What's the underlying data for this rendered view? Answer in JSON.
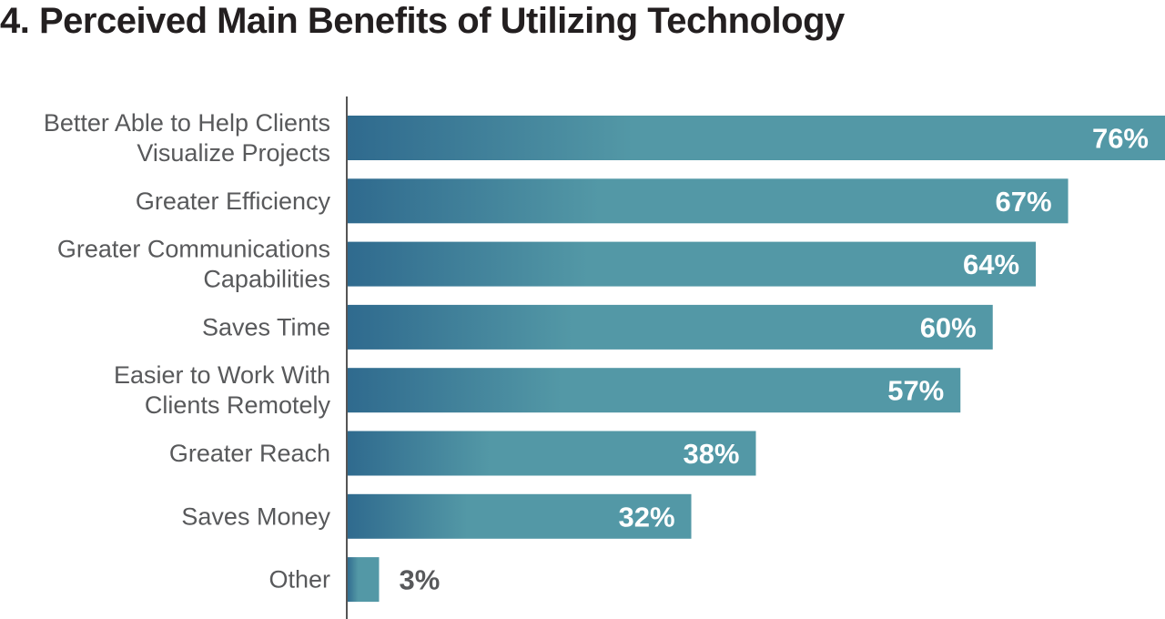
{
  "chart_data": {
    "type": "bar",
    "orientation": "horizontal",
    "title": "4. Perceived Main Benefits of Utilizing Technology",
    "categories": [
      [
        "Better Able to Help Clients",
        "Visualize Projects"
      ],
      [
        "Greater Efficiency"
      ],
      [
        "Greater Communications",
        "Capabilities"
      ],
      [
        "Saves Time"
      ],
      [
        "Easier to Work With",
        "Clients Remotely"
      ],
      [
        "Greater Reach"
      ],
      [
        "Saves Money"
      ],
      [
        "Other"
      ]
    ],
    "values": [
      76,
      67,
      64,
      60,
      57,
      38,
      32,
      3
    ],
    "value_labels": [
      "76%",
      "67%",
      "64%",
      "60%",
      "57%",
      "38%",
      "32%",
      "3%"
    ],
    "unit": "%",
    "xlim": [
      0,
      76
    ],
    "grid": false,
    "legend": "none",
    "colors": {
      "bar_start": "#2f6a8e",
      "bar_end": "#5398a6",
      "axis": "#555555",
      "label_inside": "#ffffff",
      "label_outside": "#58595b"
    }
  }
}
